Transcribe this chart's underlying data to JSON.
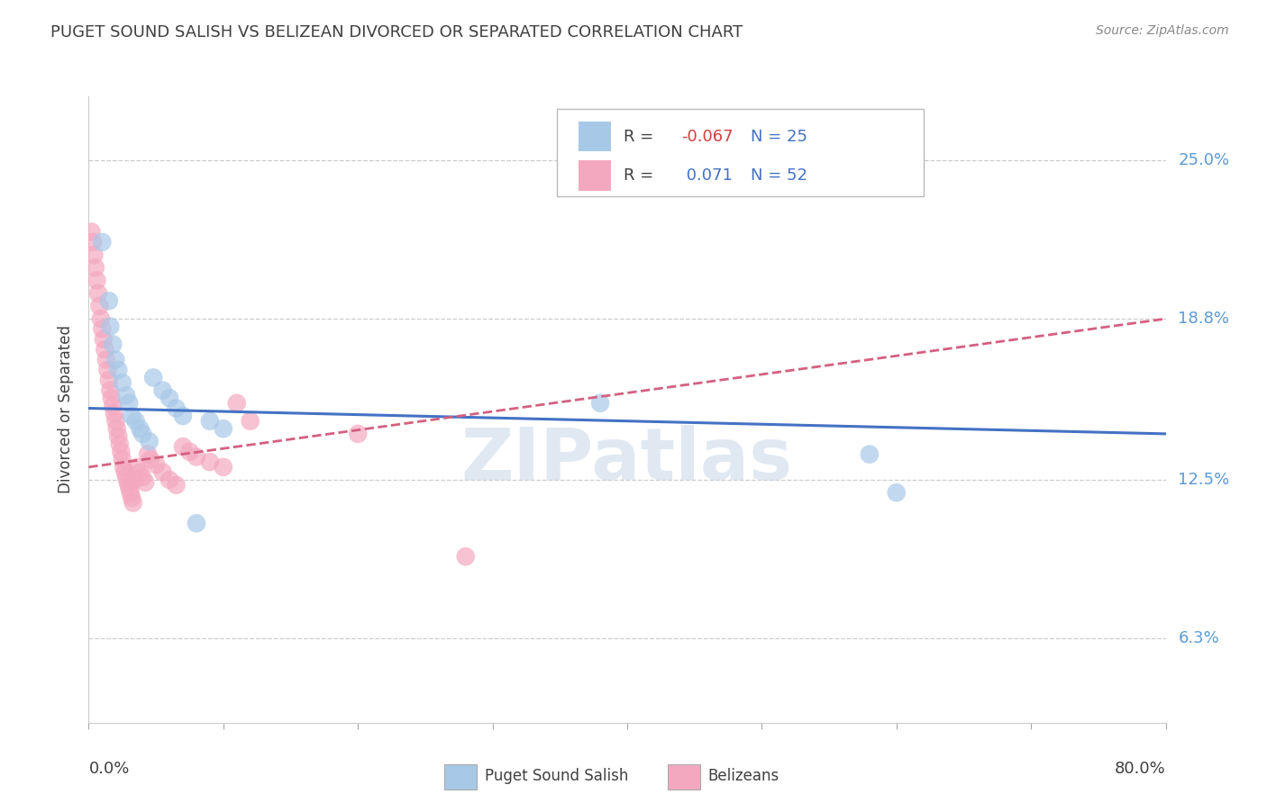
{
  "title": "PUGET SOUND SALISH VS BELIZEAN DIVORCED OR SEPARATED CORRELATION CHART",
  "source": "Source: ZipAtlas.com",
  "ylabel": "Divorced or Separated",
  "ytick_labels": [
    "6.3%",
    "12.5%",
    "18.8%",
    "25.0%"
  ],
  "ytick_values": [
    0.063,
    0.125,
    0.188,
    0.25
  ],
  "xlim": [
    0.0,
    0.8
  ],
  "ylim": [
    0.03,
    0.275
  ],
  "watermark": "ZIPatlas",
  "blue_R": -0.067,
  "blue_N": 25,
  "pink_R": 0.071,
  "pink_N": 52,
  "blue_color": "#a8c8e8",
  "pink_color": "#f4a8c0",
  "blue_line_color": "#4472c4",
  "pink_line_color": "#d46080",
  "blue_scatter": [
    [
      0.01,
      0.218
    ],
    [
      0.015,
      0.195
    ],
    [
      0.016,
      0.185
    ],
    [
      0.018,
      0.178
    ],
    [
      0.02,
      0.172
    ],
    [
      0.022,
      0.168
    ],
    [
      0.025,
      0.163
    ],
    [
      0.028,
      0.158
    ],
    [
      0.03,
      0.155
    ],
    [
      0.032,
      0.15
    ],
    [
      0.035,
      0.148
    ],
    [
      0.038,
      0.145
    ],
    [
      0.04,
      0.143
    ],
    [
      0.045,
      0.14
    ],
    [
      0.048,
      0.165
    ],
    [
      0.055,
      0.16
    ],
    [
      0.06,
      0.157
    ],
    [
      0.065,
      0.153
    ],
    [
      0.07,
      0.15
    ],
    [
      0.08,
      0.108
    ],
    [
      0.09,
      0.148
    ],
    [
      0.1,
      0.145
    ],
    [
      0.38,
      0.155
    ],
    [
      0.58,
      0.135
    ],
    [
      0.6,
      0.12
    ]
  ],
  "pink_scatter": [
    [
      0.002,
      0.222
    ],
    [
      0.003,
      0.218
    ],
    [
      0.004,
      0.213
    ],
    [
      0.005,
      0.208
    ],
    [
      0.006,
      0.203
    ],
    [
      0.007,
      0.198
    ],
    [
      0.008,
      0.193
    ],
    [
      0.009,
      0.188
    ],
    [
      0.01,
      0.184
    ],
    [
      0.011,
      0.18
    ],
    [
      0.012,
      0.176
    ],
    [
      0.013,
      0.172
    ],
    [
      0.014,
      0.168
    ],
    [
      0.015,
      0.164
    ],
    [
      0.016,
      0.16
    ],
    [
      0.017,
      0.157
    ],
    [
      0.018,
      0.154
    ],
    [
      0.019,
      0.151
    ],
    [
      0.02,
      0.148
    ],
    [
      0.021,
      0.145
    ],
    [
      0.022,
      0.142
    ],
    [
      0.023,
      0.139
    ],
    [
      0.024,
      0.136
    ],
    [
      0.025,
      0.133
    ],
    [
      0.026,
      0.13
    ],
    [
      0.027,
      0.128
    ],
    [
      0.028,
      0.126
    ],
    [
      0.029,
      0.124
    ],
    [
      0.03,
      0.122
    ],
    [
      0.031,
      0.12
    ],
    [
      0.032,
      0.118
    ],
    [
      0.033,
      0.116
    ],
    [
      0.034,
      0.125
    ],
    [
      0.036,
      0.13
    ],
    [
      0.038,
      0.128
    ],
    [
      0.04,
      0.126
    ],
    [
      0.042,
      0.124
    ],
    [
      0.044,
      0.135
    ],
    [
      0.046,
      0.133
    ],
    [
      0.05,
      0.131
    ],
    [
      0.055,
      0.128
    ],
    [
      0.06,
      0.125
    ],
    [
      0.065,
      0.123
    ],
    [
      0.07,
      0.138
    ],
    [
      0.075,
      0.136
    ],
    [
      0.08,
      0.134
    ],
    [
      0.09,
      0.132
    ],
    [
      0.1,
      0.13
    ],
    [
      0.11,
      0.155
    ],
    [
      0.12,
      0.148
    ],
    [
      0.2,
      0.143
    ],
    [
      0.28,
      0.095
    ]
  ],
  "blue_line_x": [
    0.0,
    0.8
  ],
  "blue_line_y": [
    0.153,
    0.143
  ],
  "pink_line_x": [
    0.0,
    0.8
  ],
  "pink_line_y": [
    0.13,
    0.188
  ],
  "background_color": "#ffffff",
  "grid_color": "#cccccc",
  "title_color": "#404040",
  "watermark_color": "#c8d8e8"
}
